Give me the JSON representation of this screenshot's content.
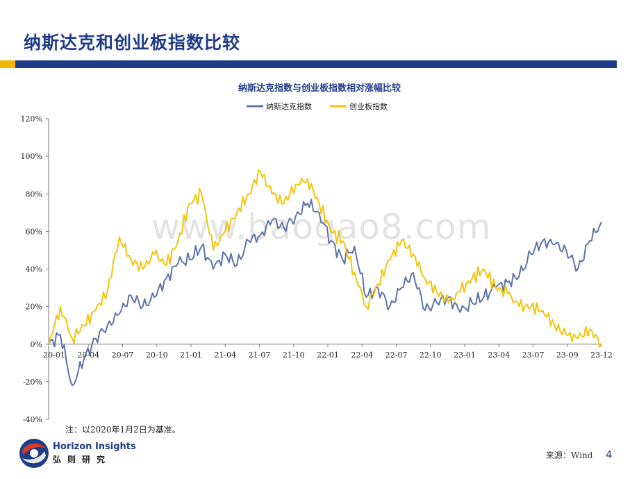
{
  "page": {
    "title": "纳斯达克和创业板指数比较",
    "note": "注：以2020年1月2日为基准。",
    "source": "来源：Wind",
    "page_number": "4",
    "watermark": "www.baogao8.com",
    "brand": {
      "en": "Horizon Insights",
      "cn": "弘则研究"
    }
  },
  "colors": {
    "nasdaq": "#5b73a8",
    "chinext": "#f2c40c",
    "brand_blue": "#1f3c88",
    "brand_gold": "#f2b705"
  },
  "chart_data": {
    "type": "line",
    "title": "纳斯达克指数与创业板指数相对涨幅比较",
    "xlabel": "",
    "ylabel": "",
    "ylim": [
      -40,
      120
    ],
    "yticks": [
      "120%",
      "100%",
      "80%",
      "60%",
      "40%",
      "20%",
      "0%",
      "-20%",
      "-40%"
    ],
    "xticks": [
      "20-01",
      "20-04",
      "20-07",
      "20-10",
      "21-01",
      "21-04",
      "21-07",
      "21-10",
      "22-01",
      "22-04",
      "22-07",
      "22-10",
      "23-01",
      "23-04",
      "23-07",
      "23-09",
      "23-12"
    ],
    "grid": false,
    "legend_position": "top-center",
    "series": [
      {
        "name": "纳斯达克指数",
        "color": "#5b73a8",
        "x": [
          "2020-01",
          "2020-02",
          "2020-03",
          "2020-04",
          "2020-05",
          "2020-06",
          "2020-07",
          "2020-08",
          "2020-09",
          "2020-10",
          "2020-11",
          "2020-12",
          "2021-01",
          "2021-02",
          "2021-03",
          "2021-04",
          "2021-05",
          "2021-06",
          "2021-07",
          "2021-08",
          "2021-09",
          "2021-10",
          "2021-11",
          "2021-12",
          "2022-01",
          "2022-02",
          "2022-03",
          "2022-04",
          "2022-05",
          "2022-06",
          "2022-07",
          "2022-08",
          "2022-09",
          "2022-10",
          "2022-11",
          "2022-12",
          "2023-01",
          "2023-02",
          "2023-03",
          "2023-04",
          "2023-05",
          "2023-06",
          "2023-07",
          "2023-08",
          "2023-09",
          "2023-10",
          "2023-11",
          "2023-12"
        ],
        "values": [
          0,
          5,
          -22,
          -8,
          3,
          10,
          16,
          26,
          20,
          25,
          35,
          43,
          45,
          52,
          40,
          48,
          42,
          55,
          58,
          66,
          62,
          68,
          75,
          70,
          55,
          45,
          52,
          25,
          30,
          20,
          30,
          38,
          18,
          22,
          25,
          17,
          22,
          25,
          30,
          33,
          36,
          48,
          55,
          53,
          50,
          40,
          55,
          65
        ]
      },
      {
        "name": "创业板指数",
        "color": "#f2c40c",
        "x": [
          "2020-01",
          "2020-02",
          "2020-03",
          "2020-04",
          "2020-05",
          "2020-06",
          "2020-07",
          "2020-08",
          "2020-09",
          "2020-10",
          "2020-11",
          "2020-12",
          "2021-01",
          "2021-02",
          "2021-03",
          "2021-04",
          "2021-05",
          "2021-06",
          "2021-07",
          "2021-08",
          "2021-09",
          "2021-10",
          "2021-11",
          "2021-12",
          "2022-01",
          "2022-02",
          "2022-03",
          "2022-04",
          "2022-05",
          "2022-06",
          "2022-07",
          "2022-08",
          "2022-09",
          "2022-10",
          "2022-11",
          "2022-12",
          "2023-01",
          "2023-02",
          "2023-03",
          "2023-04",
          "2023-05",
          "2023-06",
          "2023-07",
          "2023-08",
          "2023-09",
          "2023-10",
          "2023-11",
          "2023-12"
        ],
        "values": [
          0,
          20,
          3,
          10,
          18,
          28,
          57,
          45,
          40,
          48,
          42,
          55,
          75,
          80,
          50,
          60,
          70,
          80,
          92,
          80,
          75,
          85,
          88,
          75,
          60,
          55,
          38,
          20,
          32,
          45,
          55,
          48,
          35,
          28,
          22,
          28,
          35,
          40,
          30,
          27,
          20,
          20,
          18,
          10,
          5,
          3,
          8,
          0
        ]
      }
    ]
  }
}
